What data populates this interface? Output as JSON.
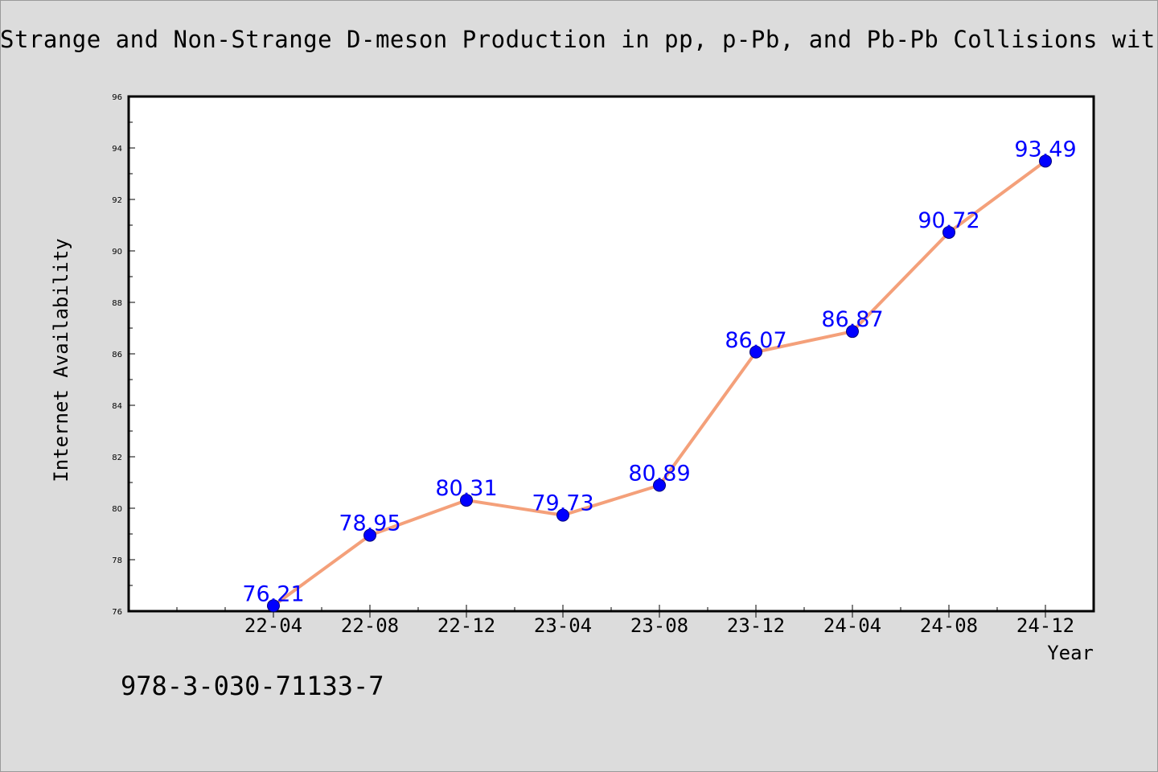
{
  "chart_data": {
    "type": "line",
    "title": "Strange and Non-Strange D-meson Production in pp, p-Pb, and Pb-Pb Collisions wit",
    "xlabel": "Year",
    "ylabel": "Internet Availability",
    "ylim": [
      76,
      96
    ],
    "y_ticks": [
      76,
      78,
      80,
      82,
      84,
      86,
      88,
      90,
      92,
      94,
      96
    ],
    "categories": [
      "22-04",
      "22-08",
      "22-12",
      "23-04",
      "23-08",
      "23-12",
      "24-04",
      "24-08",
      "24-12"
    ],
    "series": [
      {
        "values": [
          76.21,
          78.95,
          80.31,
          79.73,
          80.89,
          86.07,
          86.87,
          90.72,
          93.49
        ],
        "labels": [
          "76.21",
          "78.95",
          "80.31",
          "79.73",
          "80.89",
          "86.07",
          "86.87",
          "90.72",
          "93.49"
        ],
        "line_color": "#f4a07a",
        "marker_color": "#0000ff"
      }
    ],
    "grid": false,
    "legend": "none"
  },
  "footer": {
    "isbn": "978-3-030-71133-7"
  }
}
